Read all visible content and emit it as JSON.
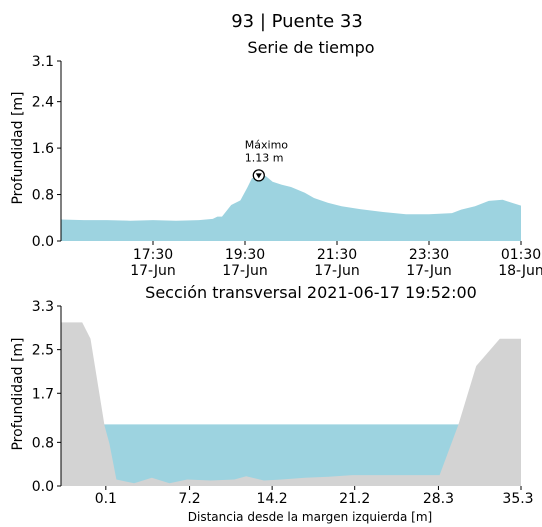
{
  "figure": {
    "title": "93 | Puente 33",
    "colors": {
      "water": "#9dd3e0",
      "terrain": "#d3d3d3",
      "marker": "#000000"
    }
  },
  "chart_data": [
    {
      "type": "area",
      "title": "Serie de tiempo",
      "ylabel": "Profundidad [m]",
      "xlabel": "",
      "ylim": [
        0,
        3.1
      ],
      "yticks": [
        "0.0",
        "0.8",
        "1.6",
        "2.4",
        "3.1"
      ],
      "ytick_values": [
        0,
        0.8,
        1.6,
        2.4,
        3.1
      ],
      "xlim": [
        15.5,
        25.5
      ],
      "xticks": [
        {
          "line1": "17:30",
          "line2": "17-Jun",
          "value": 17.5
        },
        {
          "line1": "19:30",
          "line2": "17-Jun",
          "value": 19.5
        },
        {
          "line1": "21:30",
          "line2": "17-Jun",
          "value": 21.5
        },
        {
          "line1": "23:30",
          "line2": "17-Jun",
          "value": 23.5
        },
        {
          "line1": "01:30",
          "line2": "18-Jun",
          "value": 25.5
        }
      ],
      "x": [
        15.5,
        16.0,
        16.5,
        17.0,
        17.5,
        18.0,
        18.5,
        18.8,
        18.9,
        19.0,
        19.2,
        19.4,
        19.55,
        19.65,
        19.8,
        19.95,
        20.1,
        20.3,
        20.5,
        20.8,
        21.0,
        21.3,
        21.6,
        22.0,
        22.5,
        23.0,
        23.5,
        24.0,
        24.2,
        24.5,
        24.8,
        25.1,
        25.3,
        25.5
      ],
      "y": [
        0.37,
        0.36,
        0.36,
        0.35,
        0.36,
        0.35,
        0.36,
        0.38,
        0.42,
        0.42,
        0.62,
        0.7,
        0.92,
        1.08,
        1.13,
        1.12,
        1.02,
        0.97,
        0.93,
        0.83,
        0.74,
        0.66,
        0.6,
        0.55,
        0.5,
        0.46,
        0.46,
        0.48,
        0.54,
        0.6,
        0.69,
        0.71,
        0.66,
        0.61
      ],
      "annotation": {
        "label": "Máximo",
        "value_text": "1.13 m",
        "x": 19.8,
        "y": 1.13
      },
      "grid": false
    },
    {
      "type": "area",
      "title": "Sección transversal 2021-06-17 19:52:00",
      "ylabel": "Profundidad [m]",
      "xlabel": "Distancia desde la margen izquierda [m]",
      "ylim": [
        0,
        3.3
      ],
      "yticks": [
        "0.0",
        "0.8",
        "1.7",
        "2.5",
        "3.3"
      ],
      "ytick_values": [
        0,
        0.8,
        1.7,
        2.5,
        3.3
      ],
      "xlim": [
        -3.7,
        35.3
      ],
      "xticks": [
        "0.1",
        "7.2",
        "14.2",
        "21.2",
        "28.3",
        "35.3"
      ],
      "xtick_values": [
        0.1,
        7.2,
        14.2,
        21.2,
        28.3,
        35.3
      ],
      "water_level": 1.13,
      "terrain_x": [
        -3.7,
        -1.9,
        -1.2,
        0.0,
        0.4,
        1.0,
        2.5,
        4.0,
        5.5,
        7.0,
        9.0,
        11.0,
        12.0,
        13.5,
        15.0,
        17.0,
        19.0,
        21.0,
        23.0,
        25.0,
        27.0,
        28.0,
        28.4,
        30.0,
        31.5,
        33.5,
        35.3
      ],
      "terrain_y": [
        3.0,
        3.0,
        2.7,
        1.1,
        0.78,
        0.12,
        0.05,
        0.15,
        0.05,
        0.12,
        0.1,
        0.12,
        0.18,
        0.1,
        0.12,
        0.15,
        0.17,
        0.2,
        0.2,
        0.2,
        0.2,
        0.2,
        0.2,
        1.13,
        2.2,
        2.7,
        2.7
      ],
      "grid": false
    }
  ]
}
